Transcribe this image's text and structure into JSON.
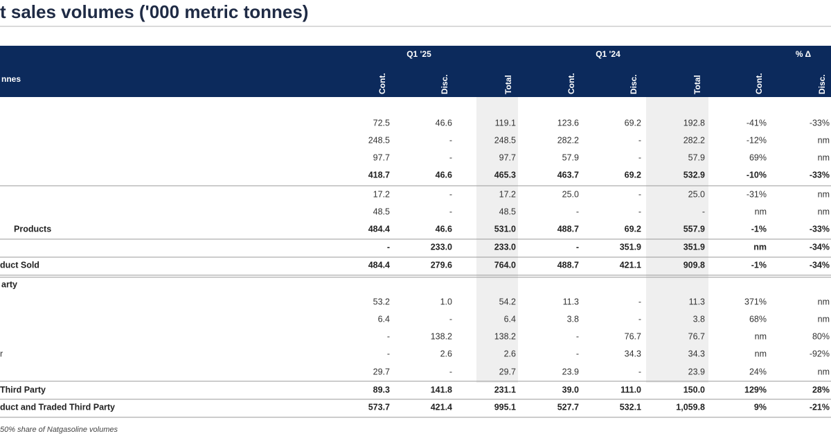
{
  "header": {
    "title": "t sales volumes ('000 metric tonnes)"
  },
  "table": {
    "row_header": "nnes",
    "groups": [
      "Q1 '25",
      "Q1 '24",
      "% Δ"
    ],
    "columns": [
      "Cont.",
      "Disc.",
      "Total",
      "Cont.",
      "Disc.",
      "Total",
      "Cont.",
      "Disc."
    ],
    "rows": [
      {
        "cells": [
          "72.5",
          "46.6",
          "119.1",
          "123.6",
          "69.2",
          "192.8",
          "-41%",
          "-33%"
        ]
      },
      {
        "cells": [
          "248.5",
          "-",
          "248.5",
          "282.2",
          "-",
          "282.2",
          "-12%",
          "nm"
        ]
      },
      {
        "cells": [
          "97.7",
          "-",
          "97.7",
          "57.9",
          "-",
          "57.9",
          "69%",
          "nm"
        ]
      },
      {
        "bold": true,
        "cells": [
          "418.7",
          "46.6",
          "465.3",
          "463.7",
          "69.2",
          "532.9",
          "-10%",
          "-33%"
        ]
      },
      {
        "cells": [
          "17.2",
          "-",
          "17.2",
          "25.0",
          "-",
          "25.0",
          "-31%",
          "nm"
        ]
      },
      {
        "cells": [
          "48.5",
          "-",
          "48.5",
          "-",
          "-",
          "-",
          "nm",
          "nm"
        ]
      },
      {
        "label": "Products",
        "bold": true,
        "cells": [
          "484.4",
          "46.6",
          "531.0",
          "488.7",
          "69.2",
          "557.9",
          "-1%",
          "-33%"
        ]
      },
      {
        "bold": true,
        "cells": [
          "-",
          "233.0",
          "233.0",
          "-",
          "351.9",
          "351.9",
          "nm",
          "-34%"
        ]
      },
      {
        "label": "duct Sold",
        "bold": true,
        "cells": [
          "484.4",
          "279.6",
          "764.0",
          "488.7",
          "421.1",
          "909.8",
          "-1%",
          "-34%"
        ]
      },
      {
        "label": "arty",
        "bold": true
      },
      {
        "cells": [
          "53.2",
          "1.0",
          "54.2",
          "11.3",
          "-",
          "11.3",
          "371%",
          "nm"
        ]
      },
      {
        "cells": [
          "6.4",
          "-",
          "6.4",
          "3.8",
          "-",
          "3.8",
          "68%",
          "nm"
        ]
      },
      {
        "cells": [
          "-",
          "138.2",
          "138.2",
          "-",
          "76.7",
          "76.7",
          "nm",
          "80%"
        ]
      },
      {
        "label": "r",
        "cells": [
          "-",
          "2.6",
          "2.6",
          "-",
          "34.3",
          "34.3",
          "nm",
          "-92%"
        ]
      },
      {
        "cells": [
          "29.7",
          "-",
          "29.7",
          "23.9",
          "-",
          "23.9",
          "24%",
          "nm"
        ]
      },
      {
        "label": "Third Party",
        "bold": true,
        "cells": [
          "89.3",
          "141.8",
          "231.1",
          "39.0",
          "111.0",
          "150.0",
          "129%",
          "28%"
        ]
      },
      {
        "label": "duct and Traded Third Party",
        "bold": true,
        "cells": [
          "573.7",
          "421.4",
          "995.1",
          "527.7",
          "532.1",
          "1,059.8",
          "9%",
          "-21%"
        ]
      }
    ]
  },
  "footnote": "50% share of Natgasoline volumes"
}
